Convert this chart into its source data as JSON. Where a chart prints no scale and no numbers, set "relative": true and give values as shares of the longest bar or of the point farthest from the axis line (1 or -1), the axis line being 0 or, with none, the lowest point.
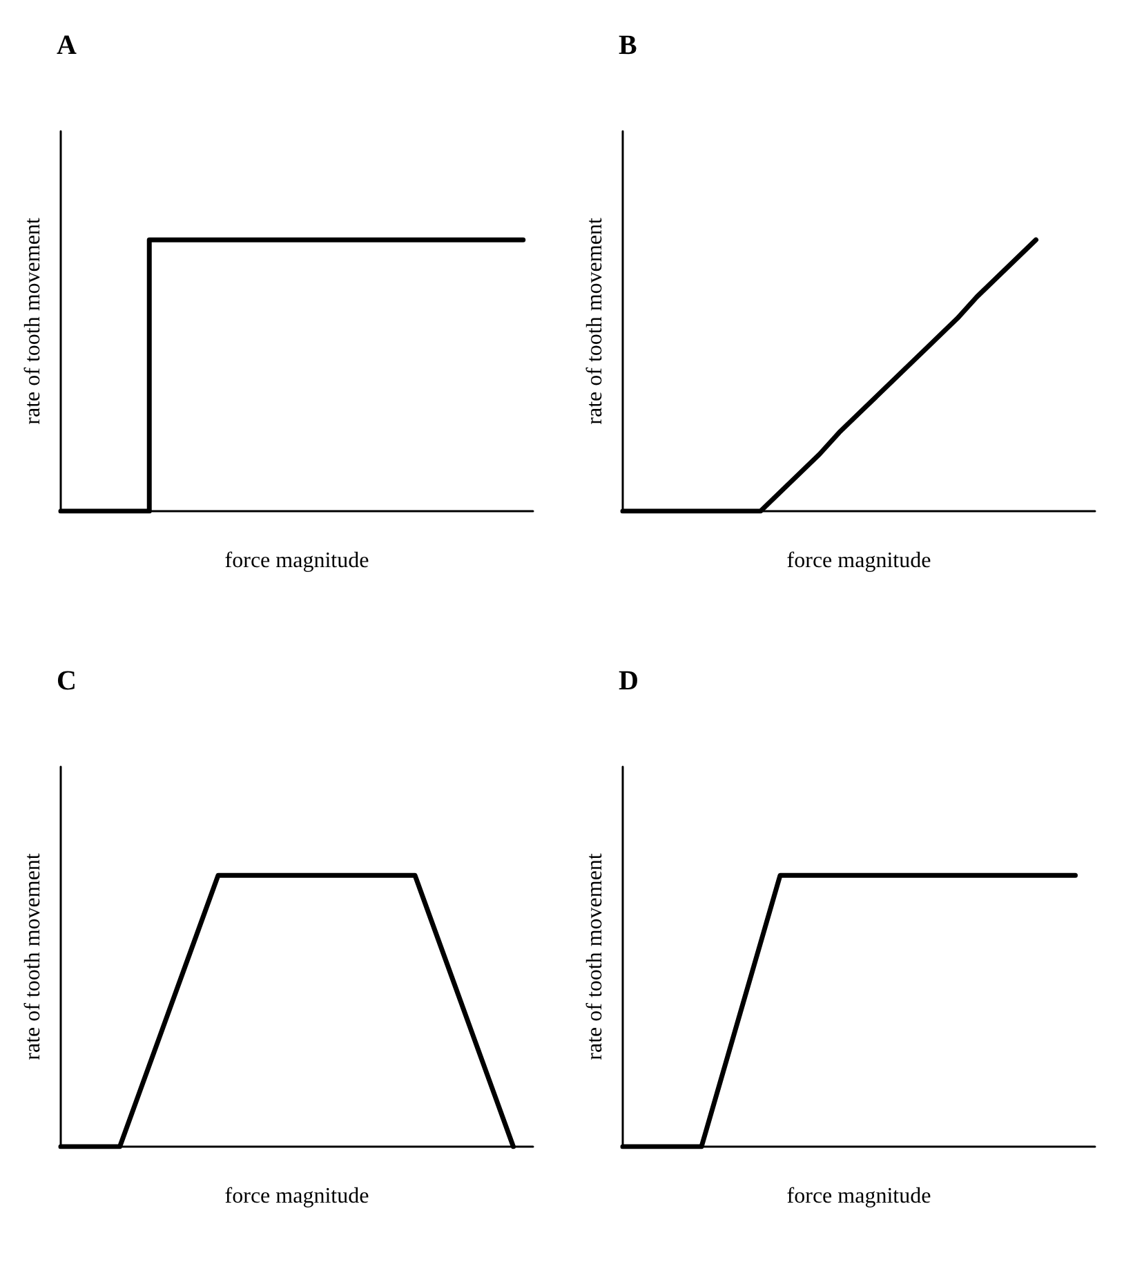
{
  "chart_data": [
    {
      "type": "step",
      "title": "A",
      "xlabel": "force magnitude",
      "ylabel": "rate of tooth movement",
      "relative": true,
      "marker": "none",
      "grid": false,
      "categories": [
        null,
        null,
        null,
        null,
        null,
        null,
        null,
        null,
        null,
        null,
        null,
        null,
        null,
        null,
        null,
        null,
        null,
        null,
        null,
        null,
        null,
        null,
        null,
        null,
        null
      ],
      "series": [
        {
          "color": "#000000",
          "values": [
            0,
            0,
            0,
            0,
            0,
            1,
            1,
            1,
            1,
            1,
            1,
            1,
            1,
            1,
            1,
            1,
            1,
            1,
            1,
            1,
            1,
            1,
            1,
            1,
            null
          ]
        }
      ]
    },
    {
      "type": "line",
      "title": "B",
      "xlabel": "force magnitude",
      "ylabel": "rate of tooth movement",
      "relative": true,
      "marker": "none",
      "grid": false,
      "categories": [
        null,
        null,
        null,
        null,
        null,
        null,
        null,
        null,
        null,
        null,
        null,
        null,
        null,
        null,
        null,
        null,
        null,
        null,
        null,
        null,
        null,
        null,
        null,
        null,
        null
      ],
      "series": [
        {
          "color": "#000000",
          "values": [
            0,
            0,
            0,
            0,
            0,
            0,
            0,
            0,
            0.07,
            0.14,
            0.21,
            0.29,
            0.36,
            0.43,
            0.5,
            0.57,
            0.64,
            0.71,
            0.79,
            0.86,
            0.93,
            1,
            null,
            null,
            null
          ]
        }
      ]
    },
    {
      "type": "line",
      "title": "C",
      "xlabel": "force magnitude",
      "ylabel": "rate of tooth movement",
      "relative": true,
      "marker": "none",
      "grid": false,
      "categories": [
        null,
        null,
        null,
        null,
        null,
        null,
        null,
        null,
        null,
        null,
        null,
        null,
        null,
        null,
        null,
        null,
        null,
        null,
        null,
        null,
        null,
        null,
        null,
        null,
        null
      ],
      "series": [
        {
          "color": "#000000",
          "values": [
            0,
            0,
            0,
            0,
            0.2,
            0.4,
            0.6,
            0.8,
            1,
            1,
            1,
            1,
            1,
            1,
            1,
            1,
            1,
            1,
            1,
            0.8,
            0.6,
            0.4,
            0.2,
            0,
            null
          ]
        }
      ]
    },
    {
      "type": "line",
      "title": "D",
      "xlabel": "force magnitude",
      "ylabel": "rate of tooth movement",
      "relative": true,
      "marker": "none",
      "grid": false,
      "categories": [
        null,
        null,
        null,
        null,
        null,
        null,
        null,
        null,
        null,
        null,
        null,
        null,
        null,
        null,
        null,
        null,
        null,
        null,
        null,
        null,
        null,
        null,
        null,
        null,
        null
      ],
      "series": [
        {
          "color": "#000000",
          "values": [
            0,
            0,
            0,
            0,
            0,
            0.25,
            0.5,
            0.75,
            1,
            1,
            1,
            1,
            1,
            1,
            1,
            1,
            1,
            1,
            1,
            1,
            1,
            1,
            1,
            1,
            null
          ]
        }
      ]
    }
  ]
}
